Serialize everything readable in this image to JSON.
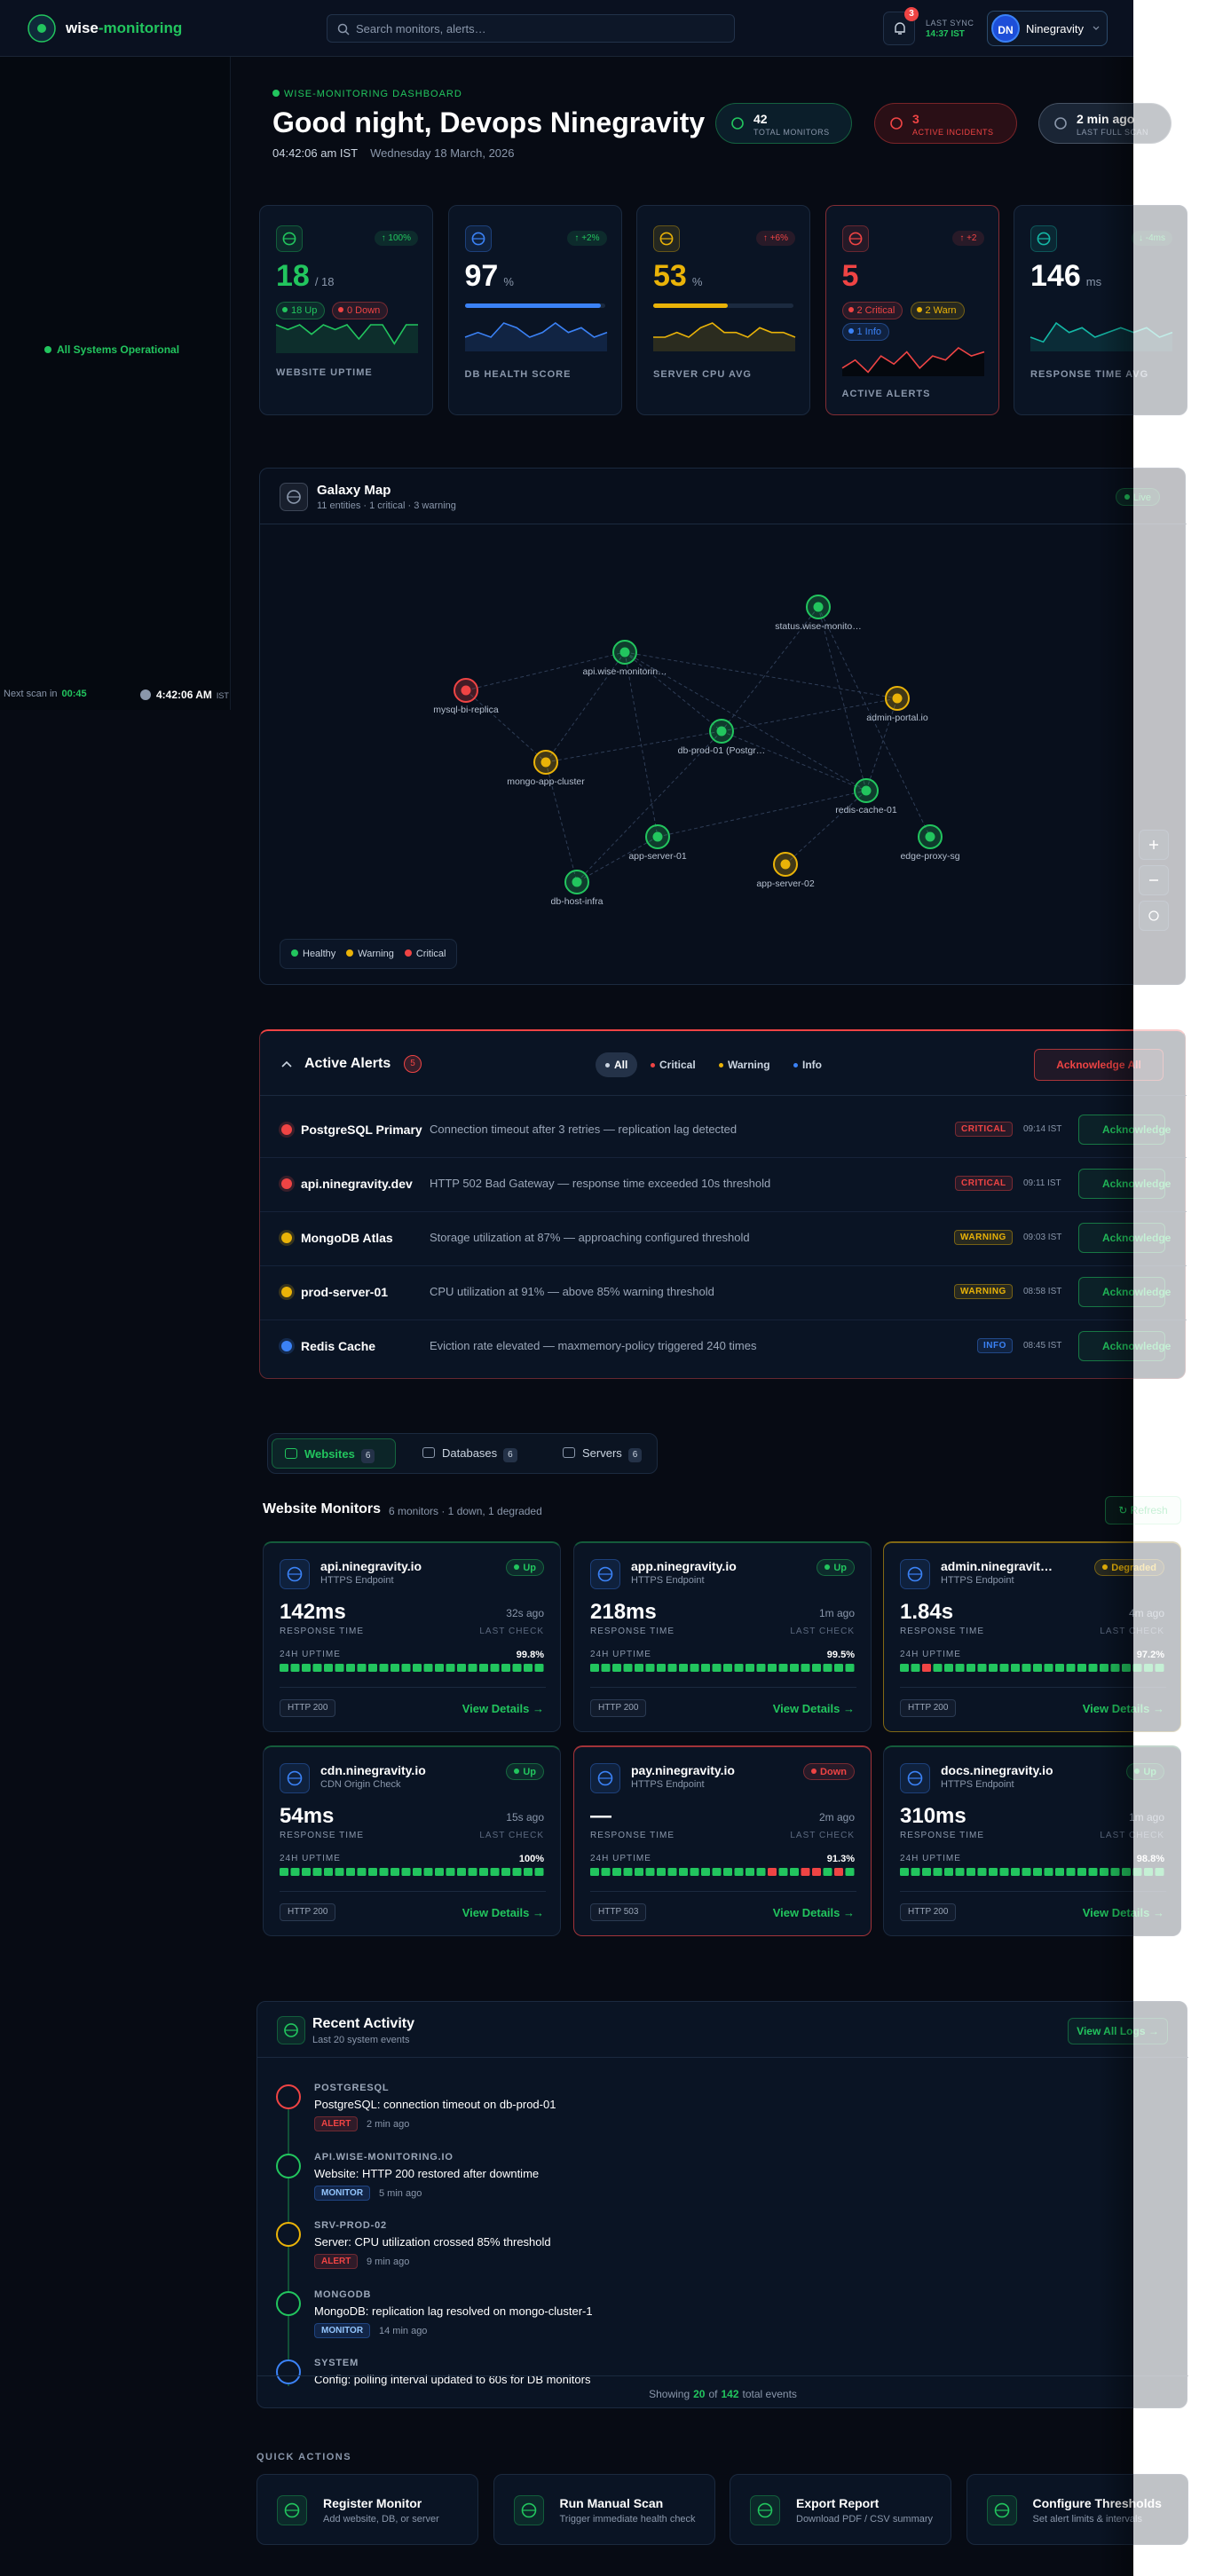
{
  "header": {
    "brand_main": "wise",
    "brand_accent": "-monitoring",
    "search_placeholder": "Search monitors, alerts…",
    "notifications": 3,
    "sync_label": "LAST SYNC",
    "sync_time": "14:37 IST",
    "avatar": "DN",
    "user": "Ninegravity"
  },
  "sidebar": {
    "status": "All Systems Operational",
    "next_scan_label": "Next scan in",
    "next_scan": "00:45",
    "clock": "4:42:06 AM",
    "clock_zone": "IST"
  },
  "hero": {
    "eyebrow": "WISE-MONITORING DASHBOARD",
    "title": "Good night, Devops Ninegravity",
    "time": "04:42:06 am IST",
    "date": "Wednesday 18 March, 2026",
    "pills": [
      {
        "value": 42,
        "label": "TOTAL MONITORS"
      },
      {
        "value": 3,
        "label": "ACTIVE INCIDENTS"
      },
      {
        "value": "2 min ago",
        "label": "LAST FULL SCAN"
      }
    ]
  },
  "stats": [
    {
      "value": 18,
      "unit": "/ 18",
      "delta": "↑ 100%",
      "label": "WEBSITE UPTIME",
      "chips": [
        "18 Up",
        "0 Down"
      ],
      "color": "#22c55e",
      "spark": [
        6,
        5,
        6,
        4,
        6,
        5,
        6,
        3,
        6,
        6,
        2,
        6,
        6
      ]
    },
    {
      "value": 97,
      "unit": "%",
      "delta": "↑ +2%",
      "label": "DB HEALTH SCORE",
      "color": "#3b82f6",
      "spark": [
        3,
        4,
        3,
        6,
        5,
        3,
        4,
        6,
        4,
        5,
        3,
        4
      ]
    },
    {
      "value": 53,
      "unit": "%",
      "delta": "↑ +6%",
      "label": "SERVER CPU AVG",
      "color": "#eab308",
      "spark": [
        3,
        3,
        4,
        3,
        5,
        6,
        4,
        4,
        3,
        5,
        4,
        4,
        3
      ]
    },
    {
      "value": 5,
      "delta": "↑ +2",
      "label": "ACTIVE ALERTS",
      "chips": [
        "2 Critical",
        "2 Warn",
        "1 Info"
      ],
      "color": "#ef4444",
      "spark": [
        2,
        4,
        1,
        5,
        3,
        6,
        2,
        5,
        4,
        7,
        5,
        6
      ]
    },
    {
      "value": 146,
      "unit": "ms",
      "delta": "↓ -4ms",
      "label": "RESPONSE TIME AVG",
      "color": "#14b8a6",
      "spark": [
        3,
        2,
        6,
        4,
        5,
        3,
        4,
        5,
        4,
        5,
        3,
        4
      ]
    }
  ],
  "galaxy": {
    "title": "Galaxy Map",
    "subtitle": "11 entities · 1 critical · 3 warning",
    "badge": "Live",
    "legend": [
      "Healthy",
      "Warning",
      "Critical"
    ],
    "nodes": [
      {
        "label": "status.wise-monito…",
        "color": "#22c55e"
      },
      {
        "label": "api.wise-monitorin…",
        "color": "#22c55e"
      },
      {
        "label": "mysql-bi-replica",
        "color": "#ef4444"
      },
      {
        "label": "admin-portal.io",
        "color": "#eab308"
      },
      {
        "label": "db-prod-01 (Postgr…",
        "color": "#22c55e"
      },
      {
        "label": "mongo-app-cluster",
        "color": "#eab308"
      },
      {
        "label": "redis-cache-01",
        "color": "#22c55e"
      },
      {
        "label": "app-server-01",
        "color": "#22c55e"
      },
      {
        "label": "edge-proxy-sg",
        "color": "#22c55e"
      },
      {
        "label": "app-server-02",
        "color": "#eab308"
      },
      {
        "label": "db-host-infra",
        "color": "#22c55e"
      }
    ]
  },
  "alerts": {
    "title": "Active Alerts",
    "count": 5,
    "filters": [
      "All",
      "Critical",
      "Warning",
      "Info"
    ],
    "ack_all": "Acknowledge All",
    "ack": "Acknowledge",
    "rows": [
      {
        "name": "PostgreSQL Primary",
        "message": "Connection timeout after 3 retries — replication lag detected",
        "level": "CRITICAL",
        "time": "09:14 IST"
      },
      {
        "name": "api.ninegravity.dev",
        "message": "HTTP 502 Bad Gateway — response time exceeded 10s threshold",
        "level": "CRITICAL",
        "time": "09:11 IST"
      },
      {
        "name": "MongoDB Atlas",
        "message": "Storage utilization at 87% — approaching configured threshold",
        "level": "WARNING",
        "time": "09:03 IST"
      },
      {
        "name": "prod-server-01",
        "message": "CPU utilization at 91% — above 85% warning threshold",
        "level": "WARNING",
        "time": "08:58 IST"
      },
      {
        "name": "Redis Cache",
        "message": "Eviction rate elevated — maxmemory-policy triggered 240 times",
        "level": "INFO",
        "time": "08:45 IST"
      }
    ]
  },
  "monitors": {
    "tabs": [
      {
        "label": "Websites",
        "count": 6
      },
      {
        "label": "Databases",
        "count": 6
      },
      {
        "label": "Servers",
        "count": 6
      }
    ],
    "title": "Website Monitors",
    "summary": "6 monitors · 1 down, 1 degraded",
    "refresh": "↻ Refresh",
    "response_label": "RESPONSE TIME",
    "check_label": "LAST CHECK",
    "uptime_label": "24H UPTIME",
    "details": "View Details →",
    "cards": [
      {
        "name": "api.ninegravity.io",
        "type": "HTTPS Endpoint",
        "status": "Up",
        "response": "142ms",
        "checked": "32s ago",
        "uptime": "99.8%",
        "code": "HTTP 200",
        "history": [
          1,
          1,
          1,
          1,
          1,
          1,
          1,
          1,
          1,
          1,
          1,
          1,
          1,
          1,
          1,
          1,
          1,
          1,
          1,
          1,
          1,
          1,
          1,
          1
        ]
      },
      {
        "name": "app.ninegravity.io",
        "type": "HTTPS Endpoint",
        "status": "Up",
        "response": "218ms",
        "checked": "1m ago",
        "uptime": "99.5%",
        "code": "HTTP 200",
        "history": [
          1,
          1,
          1,
          1,
          1,
          1,
          1,
          1,
          1,
          1,
          1,
          1,
          1,
          1,
          1,
          1,
          1,
          1,
          1,
          1,
          1,
          1,
          1,
          1
        ]
      },
      {
        "name": "admin.ninegravit…",
        "type": "HTTPS Endpoint",
        "status": "Degraded",
        "response": "1.84s",
        "checked": "4m ago",
        "uptime": "97.2%",
        "code": "HTTP 200",
        "history": [
          1,
          1,
          0,
          1,
          1,
          1,
          1,
          1,
          1,
          1,
          1,
          1,
          1,
          1,
          1,
          1,
          1,
          1,
          1,
          1,
          1,
          1,
          1,
          1
        ]
      },
      {
        "name": "cdn.ninegravity.io",
        "type": "CDN Origin Check",
        "status": "Up",
        "response": "54ms",
        "checked": "15s ago",
        "uptime": "100%",
        "code": "HTTP 200",
        "history": [
          1,
          1,
          1,
          1,
          1,
          1,
          1,
          1,
          1,
          1,
          1,
          1,
          1,
          1,
          1,
          1,
          1,
          1,
          1,
          1,
          1,
          1,
          1,
          1
        ]
      },
      {
        "name": "pay.ninegravity.io",
        "type": "HTTPS Endpoint",
        "status": "Down",
        "response": "—",
        "checked": "2m ago",
        "uptime": "91.3%",
        "code": "HTTP 503",
        "history": [
          1,
          1,
          1,
          1,
          1,
          1,
          1,
          1,
          1,
          1,
          1,
          1,
          1,
          1,
          1,
          1,
          0,
          1,
          1,
          0,
          0,
          1,
          0,
          1
        ]
      },
      {
        "name": "docs.ninegravity.io",
        "type": "HTTPS Endpoint",
        "status": "Up",
        "response": "310ms",
        "checked": "1m ago",
        "uptime": "98.8%",
        "code": "HTTP 200",
        "history": [
          1,
          1,
          1,
          1,
          1,
          1,
          1,
          1,
          1,
          1,
          1,
          1,
          1,
          1,
          1,
          1,
          1,
          1,
          1,
          1,
          1,
          1,
          1,
          1
        ]
      }
    ]
  },
  "activity": {
    "title": "Recent Activity",
    "subtitle": "Last 20 system events",
    "view_all": "View All Logs →",
    "items": [
      {
        "source": "POSTGRESQL",
        "message": "PostgreSQL: connection timeout on db-prod-01",
        "tag": "ALERT",
        "time": "2 min ago"
      },
      {
        "source": "API.WISE-MONITORING.IO",
        "message": "Website: HTTP 200 restored after downtime",
        "tag": "MONITOR",
        "time": "5 min ago"
      },
      {
        "source": "SRV-PROD-02",
        "message": "Server: CPU utilization crossed 85% threshold",
        "tag": "ALERT",
        "time": "9 min ago"
      },
      {
        "source": "MONGODB",
        "message": "MongoDB: replication lag resolved on mongo-cluster-1",
        "tag": "MONITOR",
        "time": "14 min ago"
      },
      {
        "source": "SYSTEM",
        "message": "Config: polling interval updated to 60s for DB monitors"
      }
    ],
    "footer": {
      "prefix": "Showing",
      "shown": 20,
      "of": "of",
      "total": 142,
      "suffix": "total events"
    }
  },
  "quick_actions": {
    "title": "QUICK ACTIONS",
    "items": [
      {
        "title": "Register Monitor",
        "subtitle": "Add website, DB, or server"
      },
      {
        "title": "Run Manual Scan",
        "subtitle": "Trigger immediate health check"
      },
      {
        "title": "Export Report",
        "subtitle": "Download PDF / CSV summary"
      },
      {
        "title": "Configure Thresholds",
        "subtitle": "Set alert limits & intervals"
      }
    ]
  }
}
